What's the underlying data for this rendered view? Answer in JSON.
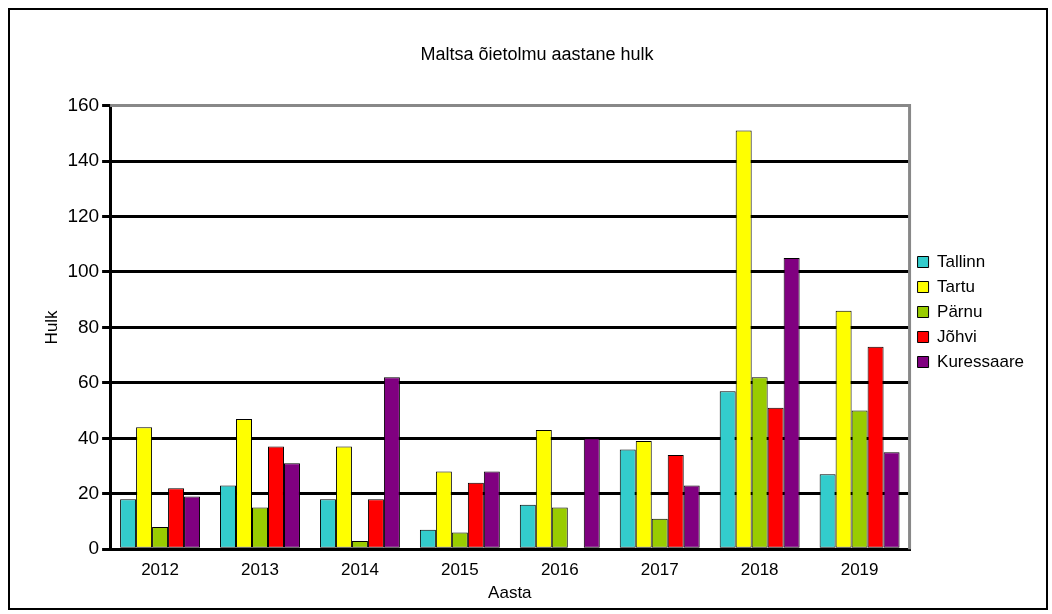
{
  "chart_data": {
    "type": "bar",
    "title": "Maltsa õietolmu aastane hulk",
    "xlabel": "Aasta",
    "ylabel": "Hulk",
    "categories": [
      "2012",
      "2013",
      "2014",
      "2015",
      "2016",
      "2017",
      "2018",
      "2019"
    ],
    "series": [
      {
        "name": "Tallinn",
        "color": "#33cccc",
        "values": [
          18,
          23,
          18,
          7,
          16,
          36,
          57,
          27
        ]
      },
      {
        "name": "Tartu",
        "color": "#ffff00",
        "values": [
          44,
          47,
          37,
          28,
          43,
          39,
          151,
          86
        ]
      },
      {
        "name": "Pärnu",
        "color": "#99cc00",
        "values": [
          8,
          15,
          3,
          6,
          15,
          11,
          62,
          50
        ]
      },
      {
        "name": "Jõhvi",
        "color": "#ff0000",
        "values": [
          22,
          37,
          18,
          24,
          0,
          34,
          51,
          73
        ]
      },
      {
        "name": "Kuressaare",
        "color": "#800080",
        "values": [
          19,
          31,
          62,
          28,
          40,
          23,
          105,
          35
        ]
      }
    ],
    "ylim": [
      0,
      160
    ],
    "yticks": [
      0,
      20,
      40,
      60,
      80,
      100,
      120,
      140,
      160
    ],
    "grid": "y",
    "legend": "right"
  }
}
